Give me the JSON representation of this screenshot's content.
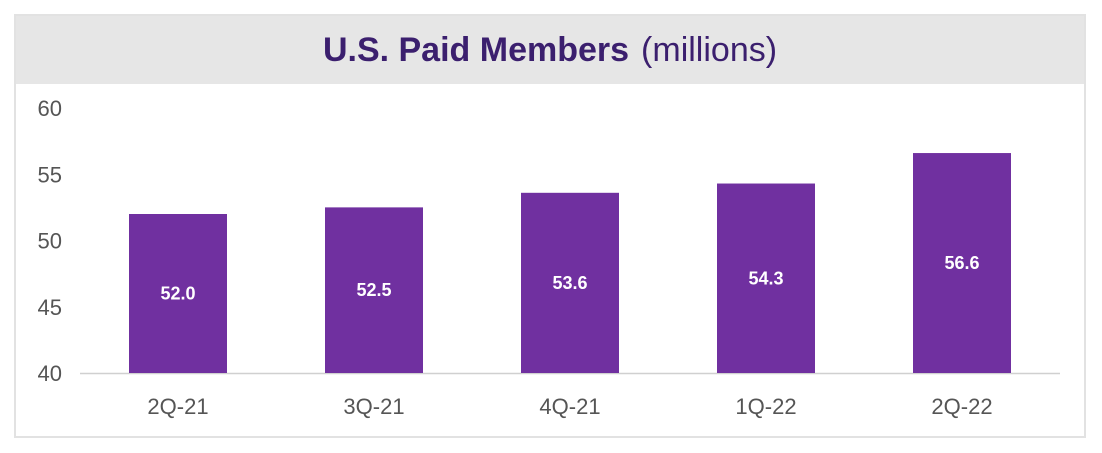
{
  "chart_data": {
    "type": "bar",
    "title": "U.S. Paid Members",
    "subtitle": "(millions)",
    "categories": [
      "2Q-21",
      "3Q-21",
      "4Q-21",
      "1Q-22",
      "2Q-22"
    ],
    "values": [
      52.0,
      52.5,
      53.6,
      54.3,
      56.6
    ],
    "data_labels": [
      "52.0",
      "52.5",
      "53.6",
      "54.3",
      "56.6"
    ],
    "ylim": [
      40,
      60
    ],
    "yticks": [
      40,
      45,
      50,
      55,
      60
    ],
    "xlabel": "",
    "ylabel": "",
    "grid": false,
    "bar_color": "#7030a0",
    "title_color": "#3b1f6e"
  }
}
